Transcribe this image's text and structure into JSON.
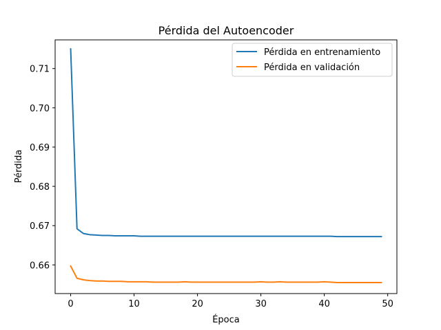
{
  "chart_data": {
    "type": "line",
    "title": "Pérdida del Autoencoder",
    "xlabel": "Época",
    "ylabel": "Pérdida",
    "xlim": [
      -2.45,
      51.45
    ],
    "ylim": [
      0.6527,
      0.7173
    ],
    "xticks": [
      0,
      10,
      20,
      30,
      40,
      50
    ],
    "yticks": [
      0.66,
      0.67,
      0.68,
      0.69,
      0.7,
      0.71
    ],
    "ytick_labels": [
      "0.66",
      "0.67",
      "0.68",
      "0.69",
      "0.70",
      "0.71"
    ],
    "xtick_labels": [
      "0",
      "10",
      "20",
      "30",
      "40",
      "50"
    ],
    "grid": false,
    "legend_position": "upper right",
    "x": [
      0,
      1,
      2,
      3,
      4,
      5,
      6,
      7,
      8,
      9,
      10,
      11,
      12,
      13,
      14,
      15,
      16,
      17,
      18,
      19,
      20,
      21,
      22,
      23,
      24,
      25,
      26,
      27,
      28,
      29,
      30,
      31,
      32,
      33,
      34,
      35,
      36,
      37,
      38,
      39,
      40,
      41,
      42,
      43,
      44,
      45,
      46,
      47,
      48,
      49
    ],
    "series": [
      {
        "name": "Pérdida en entrenamiento",
        "color": "#1f77b4",
        "values": [
          0.715,
          0.6692,
          0.668,
          0.6677,
          0.6676,
          0.6675,
          0.6675,
          0.6674,
          0.6674,
          0.6674,
          0.6674,
          0.6673,
          0.6673,
          0.6673,
          0.6673,
          0.6673,
          0.6673,
          0.6673,
          0.6673,
          0.6673,
          0.6673,
          0.6673,
          0.6673,
          0.6673,
          0.6673,
          0.6673,
          0.6673,
          0.6673,
          0.6673,
          0.6673,
          0.6673,
          0.6673,
          0.6673,
          0.6673,
          0.6673,
          0.6673,
          0.6673,
          0.6673,
          0.6673,
          0.6673,
          0.6673,
          0.6673,
          0.6672,
          0.6672,
          0.6672,
          0.6672,
          0.6672,
          0.6672,
          0.6672,
          0.6672
        ]
      },
      {
        "name": "Pérdida en validación",
        "color": "#ff7f0e",
        "values": [
          0.6597,
          0.6566,
          0.6562,
          0.656,
          0.6559,
          0.6559,
          0.6558,
          0.6558,
          0.6558,
          0.6557,
          0.6557,
          0.6557,
          0.6557,
          0.6556,
          0.6556,
          0.6556,
          0.6556,
          0.6556,
          0.6557,
          0.6556,
          0.6556,
          0.6556,
          0.6556,
          0.6556,
          0.6556,
          0.6556,
          0.6556,
          0.6556,
          0.6556,
          0.6556,
          0.6557,
          0.6556,
          0.6556,
          0.6557,
          0.6556,
          0.6556,
          0.6556,
          0.6556,
          0.6556,
          0.6556,
          0.6557,
          0.6556,
          0.6555,
          0.6555,
          0.6555,
          0.6555,
          0.6555,
          0.6555,
          0.6555,
          0.6555
        ]
      }
    ]
  }
}
